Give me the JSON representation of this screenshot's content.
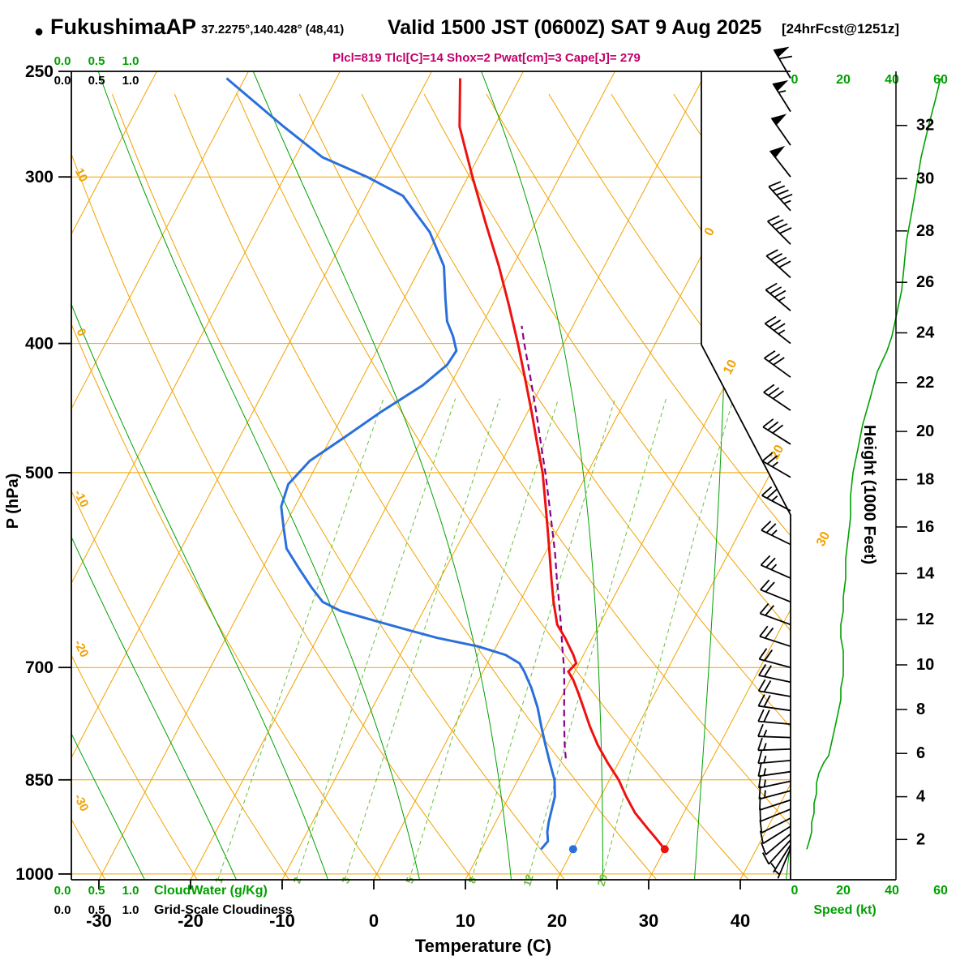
{
  "header": {
    "station": "FukushimaAP",
    "coords": "37.2275°,140.428° (48,41)",
    "valid": "Valid 1500 JST (0600Z) SAT 9 Aug 2025",
    "fcst_tag": "[24hrFcst@1251z]"
  },
  "params_line": "Plcl=819 Tlcl[C]=14 Shox=2 Pwat[cm]=3 Cape[J]= 279",
  "axes": {
    "pressure_label": "P (hPa)",
    "pressure_ticks": [
      250,
      300,
      400,
      500,
      700,
      850,
      1000
    ],
    "temp_label": "Temperature (C)",
    "temp_ticks": [
      -30,
      -20,
      -10,
      0,
      10,
      20,
      30,
      40
    ],
    "height_label": "Height (1000 Feet)",
    "height_ticks": [
      2,
      4,
      6,
      8,
      10,
      12,
      14,
      16,
      18,
      20,
      22,
      24,
      26,
      28,
      30,
      32
    ],
    "speed_label": "Speed (kt)",
    "speed_ticks": [
      0,
      20,
      40,
      60
    ]
  },
  "legend": {
    "scale_ticks": [
      "0.0",
      "0.5",
      "1.0"
    ],
    "cloudwater_label": "CloudWater (g/Kg)",
    "cloudiness_label": "Grid-Scale Cloudiness"
  },
  "chart_data": {
    "type": "line",
    "diagram": "skew-t log-p sounding (emagram)",
    "title": "FukushimaAP Valid 1500 JST (0600Z) SAT 9 Aug 2025 24hrFcst@1251z",
    "pressure_range_hpa": [
      250,
      1010
    ],
    "temp_axis_range_c": [
      -35,
      45
    ],
    "isotherm_labels_c": [
      [
        0,
        288
      ],
      [
        10,
        455
      ],
      [
        20,
        560
      ],
      [
        30,
        667
      ]
    ],
    "dry_adiabat_labels_c": [
      [
        10,
        218
      ],
      [
        0,
        412
      ],
      [
        -10,
        617
      ],
      [
        -20,
        802
      ],
      [
        -30,
        992
      ]
    ],
    "mixing_ratio_lines_gkg": [
      1,
      2,
      3,
      5,
      8,
      12,
      20
    ],
    "surface": {
      "pressure_hpa": 958,
      "temp_c": 30.0,
      "dewpoint_c": 20.0
    },
    "temperature_profile": [
      [
        958,
        30.0
      ],
      [
        940,
        28.4
      ],
      [
        925,
        27.0
      ],
      [
        900,
        24.7
      ],
      [
        875,
        22.8
      ],
      [
        850,
        21.0
      ],
      [
        825,
        18.8
      ],
      [
        800,
        16.7
      ],
      [
        775,
        14.8
      ],
      [
        750,
        13.0
      ],
      [
        730,
        11.5
      ],
      [
        715,
        10.3
      ],
      [
        705,
        9.3
      ],
      [
        695,
        9.7
      ],
      [
        685,
        8.9
      ],
      [
        665,
        7.0
      ],
      [
        650,
        5.4
      ],
      [
        625,
        3.7
      ],
      [
        600,
        2.1
      ],
      [
        575,
        0.5
      ],
      [
        550,
        -1.2
      ],
      [
        525,
        -3.0
      ],
      [
        500,
        -4.9
      ],
      [
        475,
        -7.2
      ],
      [
        450,
        -9.6
      ],
      [
        425,
        -12.2
      ],
      [
        400,
        -15.0
      ],
      [
        375,
        -18.1
      ],
      [
        350,
        -21.5
      ],
      [
        325,
        -25.4
      ],
      [
        300,
        -29.5
      ],
      [
        275,
        -33.8
      ],
      [
        253,
        -36.5
      ]
    ],
    "dewpoint_profile": [
      [
        958,
        16.5
      ],
      [
        945,
        16.8
      ],
      [
        930,
        16.2
      ],
      [
        915,
        15.8
      ],
      [
        900,
        15.5
      ],
      [
        875,
        15.0
      ],
      [
        850,
        14.0
      ],
      [
        825,
        12.5
      ],
      [
        800,
        11.0
      ],
      [
        775,
        9.5
      ],
      [
        750,
        8.0
      ],
      [
        725,
        6.2
      ],
      [
        705,
        4.5
      ],
      [
        695,
        3.5
      ],
      [
        685,
        1.5
      ],
      [
        675,
        -2.0
      ],
      [
        665,
        -7.0
      ],
      [
        655,
        -11.0
      ],
      [
        645,
        -15.0
      ],
      [
        635,
        -19.0
      ],
      [
        625,
        -21.5
      ],
      [
        610,
        -23.5
      ],
      [
        590,
        -26.0
      ],
      [
        570,
        -28.5
      ],
      [
        550,
        -30.0
      ],
      [
        530,
        -31.5
      ],
      [
        510,
        -32.0
      ],
      [
        490,
        -31.0
      ],
      [
        470,
        -28.5
      ],
      [
        450,
        -26.0
      ],
      [
        430,
        -23.0
      ],
      [
        415,
        -21.5
      ],
      [
        405,
        -21.3
      ],
      [
        395,
        -22.5
      ],
      [
        385,
        -24.0
      ],
      [
        370,
        -25.5
      ],
      [
        350,
        -27.5
      ],
      [
        330,
        -31.0
      ],
      [
        310,
        -36.0
      ],
      [
        300,
        -41.0
      ],
      [
        290,
        -47.0
      ],
      [
        275,
        -53.0
      ],
      [
        253,
        -62.0
      ]
    ],
    "parcel_profile": [
      [
        819,
        14.0
      ],
      [
        800,
        13.1
      ],
      [
        775,
        12.0
      ],
      [
        750,
        10.9
      ],
      [
        725,
        9.8
      ],
      [
        700,
        8.6
      ],
      [
        675,
        7.2
      ],
      [
        650,
        5.8
      ],
      [
        625,
        4.3
      ],
      [
        600,
        2.7
      ],
      [
        575,
        1.1
      ],
      [
        550,
        -0.7
      ],
      [
        525,
        -2.6
      ],
      [
        500,
        -4.6
      ],
      [
        475,
        -6.8
      ],
      [
        450,
        -9.1
      ],
      [
        425,
        -11.6
      ],
      [
        400,
        -14.3
      ],
      [
        388,
        -15.6
      ]
    ],
    "wind_barbs": [
      [
        253,
        330,
        60
      ],
      [
        268,
        328,
        55
      ],
      [
        284,
        325,
        52
      ],
      [
        300,
        322,
        50
      ],
      [
        318,
        318,
        45
      ],
      [
        337,
        315,
        42
      ],
      [
        357,
        312,
        38
      ],
      [
        378,
        310,
        35
      ],
      [
        400,
        308,
        35
      ],
      [
        424,
        306,
        32
      ],
      [
        449,
        304,
        30
      ],
      [
        476,
        302,
        28
      ],
      [
        504,
        300,
        26
      ],
      [
        534,
        298,
        25
      ],
      [
        566,
        296,
        24
      ],
      [
        600,
        294,
        23
      ],
      [
        625,
        292,
        22
      ],
      [
        650,
        290,
        22
      ],
      [
        675,
        288,
        21
      ],
      [
        700,
        285,
        20
      ],
      [
        718,
        282,
        20
      ],
      [
        736,
        280,
        19
      ],
      [
        754,
        278,
        18
      ],
      [
        772,
        275,
        18
      ],
      [
        790,
        272,
        17
      ],
      [
        806,
        268,
        16
      ],
      [
        822,
        265,
        15
      ],
      [
        838,
        262,
        15
      ],
      [
        852,
        258,
        14
      ],
      [
        866,
        255,
        13
      ],
      [
        880,
        252,
        12
      ],
      [
        894,
        248,
        12
      ],
      [
        908,
        243,
        11
      ],
      [
        921,
        238,
        10
      ],
      [
        933,
        230,
        9
      ],
      [
        943,
        222,
        8
      ],
      [
        951,
        212,
        7
      ],
      [
        957,
        203,
        6
      ]
    ],
    "wind_speed_profile": [
      [
        958,
        5
      ],
      [
        945,
        6
      ],
      [
        930,
        7
      ],
      [
        915,
        7
      ],
      [
        900,
        8
      ],
      [
        885,
        8
      ],
      [
        870,
        9
      ],
      [
        855,
        9
      ],
      [
        840,
        10
      ],
      [
        825,
        12
      ],
      [
        815,
        14
      ],
      [
        800,
        15
      ],
      [
        785,
        16
      ],
      [
        770,
        17
      ],
      [
        755,
        18
      ],
      [
        740,
        19
      ],
      [
        725,
        19
      ],
      [
        710,
        20
      ],
      [
        695,
        20
      ],
      [
        680,
        20
      ],
      [
        665,
        19
      ],
      [
        650,
        19
      ],
      [
        635,
        20
      ],
      [
        620,
        20
      ],
      [
        600,
        21
      ],
      [
        580,
        21
      ],
      [
        560,
        22
      ],
      [
        540,
        23
      ],
      [
        520,
        23
      ],
      [
        500,
        24
      ],
      [
        480,
        26
      ],
      [
        460,
        28
      ],
      [
        440,
        31
      ],
      [
        420,
        34
      ],
      [
        405,
        38
      ],
      [
        395,
        40
      ],
      [
        380,
        42
      ],
      [
        365,
        44
      ],
      [
        350,
        45
      ],
      [
        335,
        46
      ],
      [
        320,
        48
      ],
      [
        305,
        50
      ],
      [
        290,
        52
      ],
      [
        275,
        55
      ],
      [
        262,
        58
      ],
      [
        253,
        60
      ]
    ],
    "colors": {
      "grid_orange": "#f2a200",
      "adiabat_green": "#00a000",
      "mixing_green": "#6abf3a",
      "temperature_red": "#ee1111",
      "dewpoint_blue": "#2a6fdb",
      "parcel_purple": "#8b008b",
      "params_magenta": "#c2006b",
      "speed_green": "#00a000",
      "barb_black": "#000000"
    }
  }
}
